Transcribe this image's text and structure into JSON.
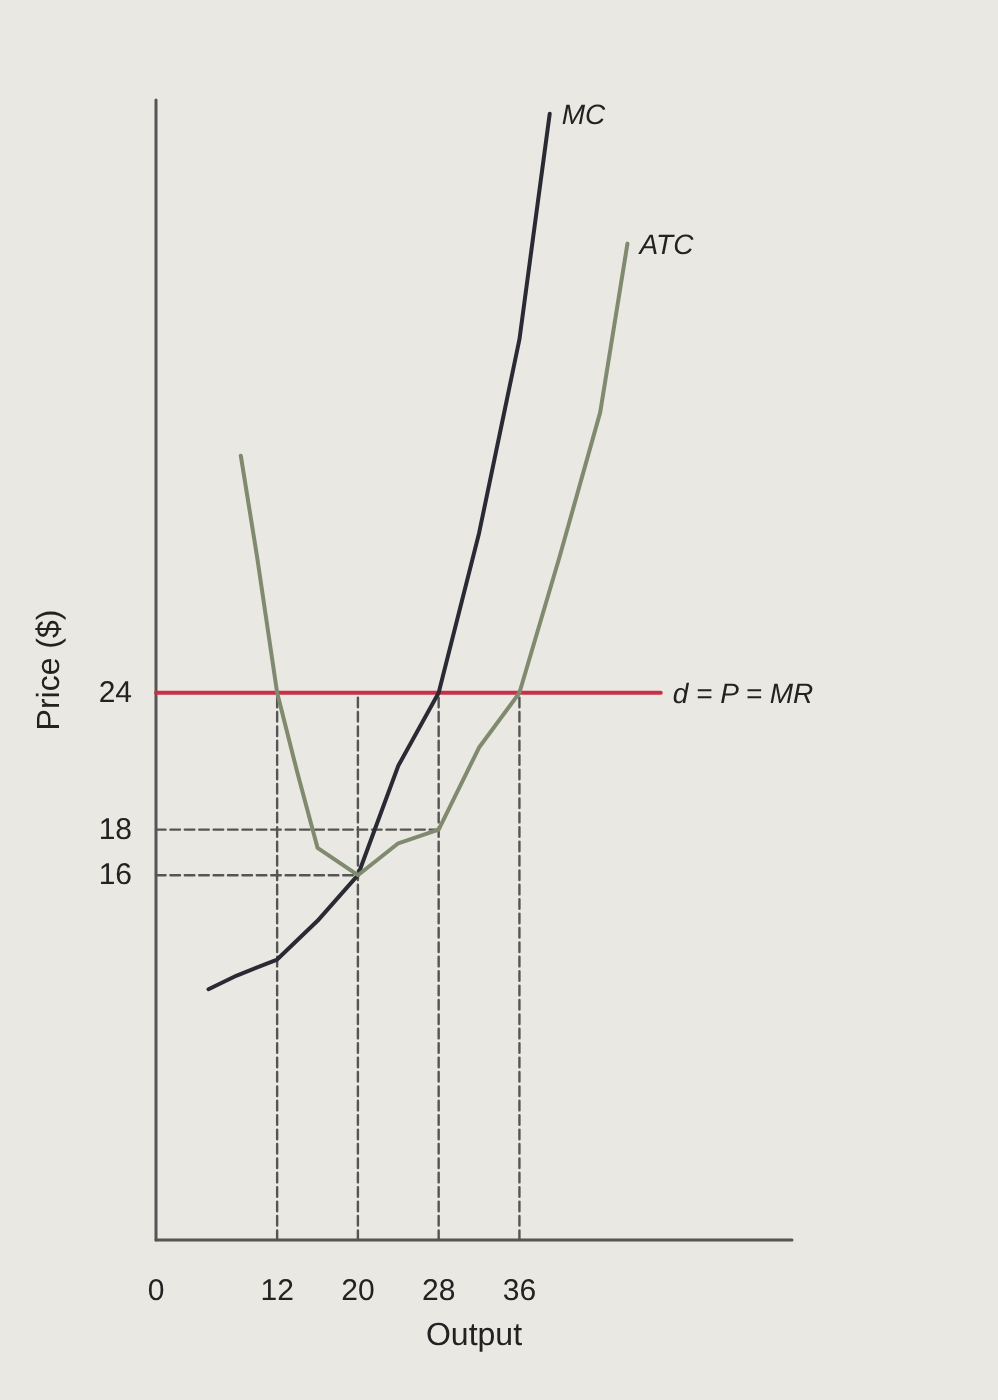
{
  "chart_data": {
    "type": "line",
    "xlabel": "Output",
    "ylabel": "Price ($)",
    "xlim": [
      0,
      63
    ],
    "ylim": [
      0,
      50
    ],
    "xticks": [
      0,
      12,
      20,
      28,
      36
    ],
    "yticks": [
      16,
      18,
      24
    ],
    "grid": false,
    "legend": false,
    "marker": "none",
    "line_style": "solid",
    "series": [
      {
        "name": "d = P = MR",
        "color": "#c8304a",
        "x": [
          0,
          50
        ],
        "values": [
          24,
          24
        ]
      },
      {
        "name": "MC",
        "color": "#2a2a35",
        "x": [
          5.2,
          8,
          12,
          16,
          20,
          24,
          28,
          32,
          36,
          39
        ],
        "values": [
          11,
          11.6,
          12.3,
          14,
          16,
          20.8,
          24,
          31,
          39.5,
          49.4
        ]
      },
      {
        "name": "ATC",
        "color": "#7f8a6e",
        "x": [
          8.4,
          10,
          12,
          14,
          16,
          20,
          24,
          28,
          32,
          36,
          40,
          44,
          46.7
        ],
        "values": [
          34.4,
          30,
          24,
          20.5,
          17.2,
          16,
          17.4,
          18,
          21.6,
          24,
          30,
          36.3,
          43.7
        ]
      },
      {
        "color": "#555555",
        "line_style": "dashed",
        "x": [
          12,
          12
        ],
        "values": [
          0,
          24
        ]
      },
      {
        "color": "#555555",
        "line_style": "dashed",
        "x": [
          20,
          20
        ],
        "values": [
          0,
          24
        ]
      },
      {
        "color": "#555555",
        "line_style": "dashed",
        "x": [
          28,
          28
        ],
        "values": [
          0,
          24
        ]
      },
      {
        "color": "#555555",
        "line_style": "dashed",
        "x": [
          36,
          36
        ],
        "values": [
          0,
          24
        ]
      },
      {
        "color": "#555555",
        "line_style": "dashed",
        "x": [
          0,
          20
        ],
        "values": [
          16,
          16
        ]
      },
      {
        "color": "#555555",
        "line_style": "dashed",
        "x": [
          0,
          28
        ],
        "values": [
          18,
          18
        ]
      }
    ]
  }
}
